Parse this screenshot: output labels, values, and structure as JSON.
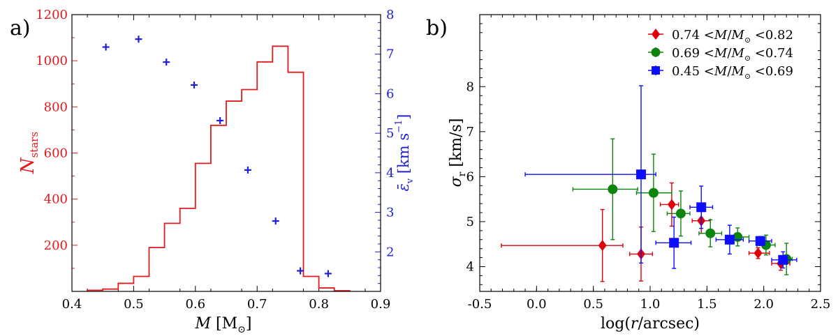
{
  "chart_data": [
    {
      "panel_label": "a)",
      "type": "histogram+scatter",
      "xlabel_parts": [
        "M",
        " [M",
        "⊙",
        "]"
      ],
      "xlim": [
        0.4,
        0.9
      ],
      "xticks": [
        0.4,
        0.5,
        0.6,
        0.7,
        0.8,
        0.9
      ],
      "xtick_labels": [
        "0.4",
        "0.5",
        "0.6",
        "0.7",
        "0.8",
        "0.9"
      ],
      "left_axis": {
        "label_main": "N",
        "label_sub": "stars",
        "ylim": [
          0,
          1200
        ],
        "ticks": [
          200,
          400,
          600,
          800,
          1000,
          1200
        ],
        "tick_labels": [
          "200",
          "400",
          "600",
          "800",
          "1000",
          "1200"
        ],
        "color": "#e41a1c"
      },
      "right_axis": {
        "label_main": "ε̄",
        "label_sub": "v",
        "label_rest": " [km s",
        "label_sup": "−1",
        "label_close": "]",
        "ylim": [
          1,
          8
        ],
        "ticks": [
          2,
          3,
          4,
          5,
          6,
          7,
          8
        ],
        "tick_labels": [
          "2",
          "3",
          "4",
          "5",
          "6",
          "7",
          "8"
        ],
        "color": "#1f1fd6"
      },
      "histogram": {
        "bin_edges": [
          0.425,
          0.45,
          0.475,
          0.5,
          0.525,
          0.55,
          0.575,
          0.6,
          0.625,
          0.65,
          0.675,
          0.7,
          0.725,
          0.75,
          0.775,
          0.8,
          0.825,
          0.85
        ],
        "counts": [
          5,
          10,
          35,
          65,
          190,
          295,
          360,
          555,
          720,
          825,
          875,
          995,
          1063,
          950,
          65,
          15,
          3
        ]
      },
      "points": {
        "x": [
          0.455,
          0.508,
          0.553,
          0.598,
          0.64,
          0.685,
          0.73,
          0.77,
          0.815
        ],
        "y": [
          7.18,
          7.38,
          6.8,
          6.22,
          5.32,
          4.07,
          2.78,
          1.52,
          1.45
        ]
      }
    },
    {
      "panel_label": "b)",
      "type": "scatter_errorbar",
      "xlabel_parts": [
        "log(",
        "r",
        "/arcsec)"
      ],
      "ylabel_main": "σ",
      "ylabel_sub": "r",
      "ylabel_rest": " [km/s]",
      "xlim": [
        -0.5,
        2.5
      ],
      "ylim": [
        3.45,
        9.6
      ],
      "xticks": [
        -0.5,
        0.0,
        0.5,
        1.0,
        1.5,
        2.0,
        2.5
      ],
      "xtick_labels": [
        "-0.5",
        "0.0",
        "0.5",
        "1.0",
        "1.5",
        "2.0",
        "2.5"
      ],
      "yticks": [
        4,
        5,
        6,
        7,
        8
      ],
      "ytick_labels": [
        "4",
        "5",
        "6",
        "7",
        "8"
      ],
      "legend_position": "top-right",
      "series": [
        {
          "name": "0.74 < M/M⊙ < 0.82",
          "legend_low": "0.74",
          "legend_high": "0.82",
          "color": "#e0000a",
          "marker": "diamond",
          "x": [
            0.58,
            0.92,
            1.19,
            1.45,
            1.95,
            2.15
          ],
          "y": [
            4.47,
            4.28,
            5.38,
            5.02,
            4.3,
            4.07
          ],
          "xerr_low": [
            0.89,
            0.1,
            0.1,
            0.08,
            0.08,
            0.08
          ],
          "xerr_high": [
            0.18,
            0.1,
            0.06,
            0.08,
            0.1,
            0.08
          ],
          "yerr": [
            0.8,
            0.6,
            0.48,
            0.28,
            0.12,
            0.15
          ]
        },
        {
          "name": "0.69 < M/M⊙ < 0.74",
          "legend_low": "0.69",
          "legend_high": "0.74",
          "color": "#0d850d",
          "marker": "circle",
          "x": [
            0.67,
            1.03,
            1.27,
            1.53,
            1.77,
            2.02,
            2.2
          ],
          "y": [
            5.72,
            5.64,
            5.18,
            4.74,
            4.66,
            4.48,
            4.17
          ],
          "xerr_low": [
            0.35,
            0.15,
            0.12,
            0.1,
            0.1,
            0.08,
            0.05
          ],
          "xerr_high": [
            0.22,
            0.16,
            0.08,
            0.1,
            0.1,
            0.08,
            0.05
          ],
          "yerr": [
            1.12,
            0.86,
            0.5,
            0.3,
            0.2,
            0.22,
            0.35
          ]
        },
        {
          "name": "0.45 < M/M⊙ < 0.69",
          "legend_low": "0.45",
          "legend_high": "0.69",
          "color": "#0d0dff",
          "marker": "square",
          "x": [
            0.92,
            1.21,
            1.45,
            1.7,
            1.97,
            2.17
          ],
          "y": [
            6.05,
            4.53,
            5.32,
            4.6,
            4.57,
            4.15
          ],
          "xerr_low": [
            1.02,
            0.16,
            0.1,
            0.12,
            0.1,
            0.1
          ],
          "xerr_high": [
            0.13,
            0.15,
            0.1,
            0.12,
            0.1,
            0.12
          ],
          "yerr": [
            1.97,
            0.57,
            0.47,
            0.32,
            0.1,
            0.18
          ]
        }
      ]
    }
  ]
}
